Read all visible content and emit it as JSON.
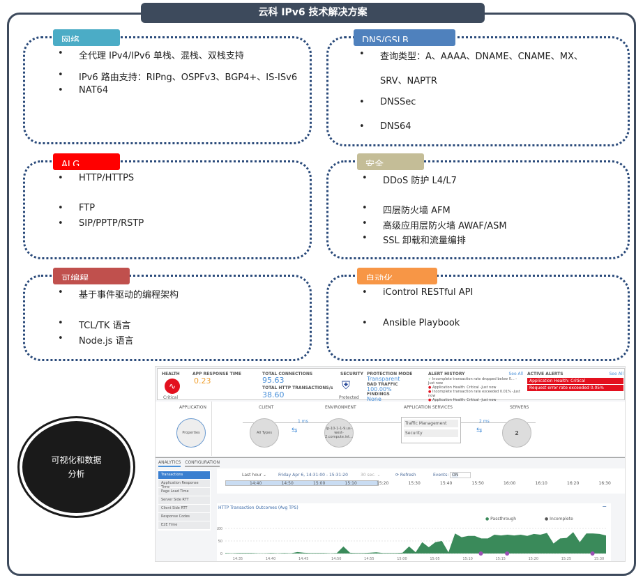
{
  "title": "云科 IPv6 技术解决方案",
  "sections": [
    {
      "tag": "网络",
      "color": "#4bacc6",
      "items": [
        "全代理 IPv4/IPv6 单栈、混栈、双栈支持",
        "IPv6 路由支持：RIPng、OSPFv3、BGP4+、IS-ISv6",
        "NAT64"
      ]
    },
    {
      "tag": "DNS/GSLB",
      "color": "#4f81bd",
      "items": [
        "查询类型：A、AAAA、DNAME、CNAME、MX、",
        "SRV、NAPTR",
        "DNSSec",
        "DNS64"
      ]
    },
    {
      "tag": "ALG",
      "color": "#ff0000",
      "items": [
        "HTTP/HTTPS",
        "FTP",
        "SIP/PPTP/RSTP"
      ]
    },
    {
      "tag": "安全",
      "color": "#c4bd97",
      "items": [
        "DDoS 防护 L4/L7",
        "四层防火墙 AFM",
        "高级应用层防火墙 AWAF/ASM",
        "SSL 卸载和流量编排"
      ]
    },
    {
      "tag": "可编程",
      "color": "#c0504d",
      "items": [
        "基于事件驱动的编程架构",
        "TCL/TK 语言",
        "Node.js 语言"
      ]
    },
    {
      "tag": "自动化",
      "color": "#f79646",
      "items": [
        "iControl RESTful API",
        "Ansible Playbook"
      ]
    }
  ],
  "circle_label": "可视化和数据分析",
  "dashboard": {
    "health": {
      "label": "HEALTH",
      "status": "Critical",
      "icon": "heartbeat-icon"
    },
    "app_response": {
      "label": "APP RESPONSE TIME",
      "value": "0.23"
    },
    "connections": {
      "label": "TOTAL CONNECTIONS",
      "value": "95.63",
      "http_label": "TOTAL HTTP TRANSACTIONS/s",
      "http_value": "38.60"
    },
    "security": {
      "label": "SECURITY",
      "status": "Protected",
      "icon": "shield-check-icon"
    },
    "protection": {
      "mode_label": "PROTECTION MODE",
      "mode": "Transparent",
      "bad_label": "BAD TRAFFIC",
      "bad": "100.00%",
      "findings_label": "FINDINGS",
      "findings": "None"
    },
    "alert_history": {
      "label": "ALERT HISTORY",
      "see_all": "See All",
      "items": [
        "Incomplete transaction rate dropped below 0... -Just now",
        "Application Health: Critical -Just now",
        "Incomplete transaction rate exceeded 0.01% -Just now",
        "Application Health: Critical -Just now",
        "Application Health: Critical -Just now"
      ]
    },
    "active_alerts": {
      "label": "ACTIVE ALERTS",
      "see_all": "See All",
      "items": [
        "Application Health: Critical",
        "Request error rate exceeded 0.05%"
      ]
    },
    "topology": {
      "application": "APPLICATION",
      "properties": "Properties",
      "client": "CLIENT",
      "all_types": "All Types",
      "client_latency": "1 ms",
      "environment": "ENVIRONMENT",
      "env_node": "ip-10-1-1-9.us-west-2.compute.int...",
      "app_services": "APPLICATION SERVICES",
      "traffic_mgmt": "Traffic Management",
      "security": "Security",
      "server_latency": "2 ms",
      "servers": "SERVERS",
      "server_count": "2"
    },
    "tabs": [
      "ANALYTICS",
      "CONFIGURATION"
    ],
    "side": [
      "Transactions",
      "Application Response Time",
      "Page Load Time",
      "Server Side RTT",
      "Client Side RTT",
      "Response Codes",
      "E2E Time"
    ],
    "toolbar": {
      "range": "Last hour ⌄",
      "date": "Friday Apr 6, 14:31:00 - 15:31:20",
      "interval": "30 sec. ⌄",
      "refresh": "⟳ Refresh",
      "events": "Events:",
      "events_state": "ON"
    },
    "timeline": [
      "14:40",
      "14:50",
      "15:00",
      "15:10",
      "15:20",
      "15:30",
      "15:40",
      "15:50",
      "16:00",
      "16:10",
      "16:20",
      "16:30"
    ]
  },
  "chart_data": {
    "type": "area",
    "title": "HTTP Transaction Outcomes (Avg TPS)",
    "legend": [
      "Passthrough",
      "Incomplete"
    ],
    "colors": {
      "Passthrough": "#3a8a5a",
      "Incomplete": "#111111"
    },
    "ylim": [
      0,
      100
    ],
    "yticks": [
      "0",
      "50",
      "100"
    ],
    "xticks": [
      "14:35",
      "14:40",
      "14:45",
      "14:50",
      "14:55",
      "15:00",
      "15:05",
      "15:10",
      "15:15",
      "15:20",
      "15:25",
      "15:30"
    ],
    "series": [
      {
        "name": "Passthrough",
        "values": [
          2,
          1,
          2,
          2,
          2,
          1,
          1,
          2,
          1,
          2,
          1,
          6,
          3,
          2,
          2,
          2,
          1,
          2,
          28,
          3,
          2,
          2,
          3,
          5,
          2,
          2,
          2,
          3,
          28,
          5,
          45,
          25,
          45,
          50,
          5,
          80,
          65,
          70,
          70,
          60,
          60,
          75,
          72,
          75,
          72,
          75,
          70,
          78,
          75,
          82,
          40,
          60,
          62,
          85,
          45,
          80,
          80,
          78,
          72
        ]
      }
    ],
    "event_markers": [
      "15:12",
      "15:16",
      "15:29"
    ]
  }
}
